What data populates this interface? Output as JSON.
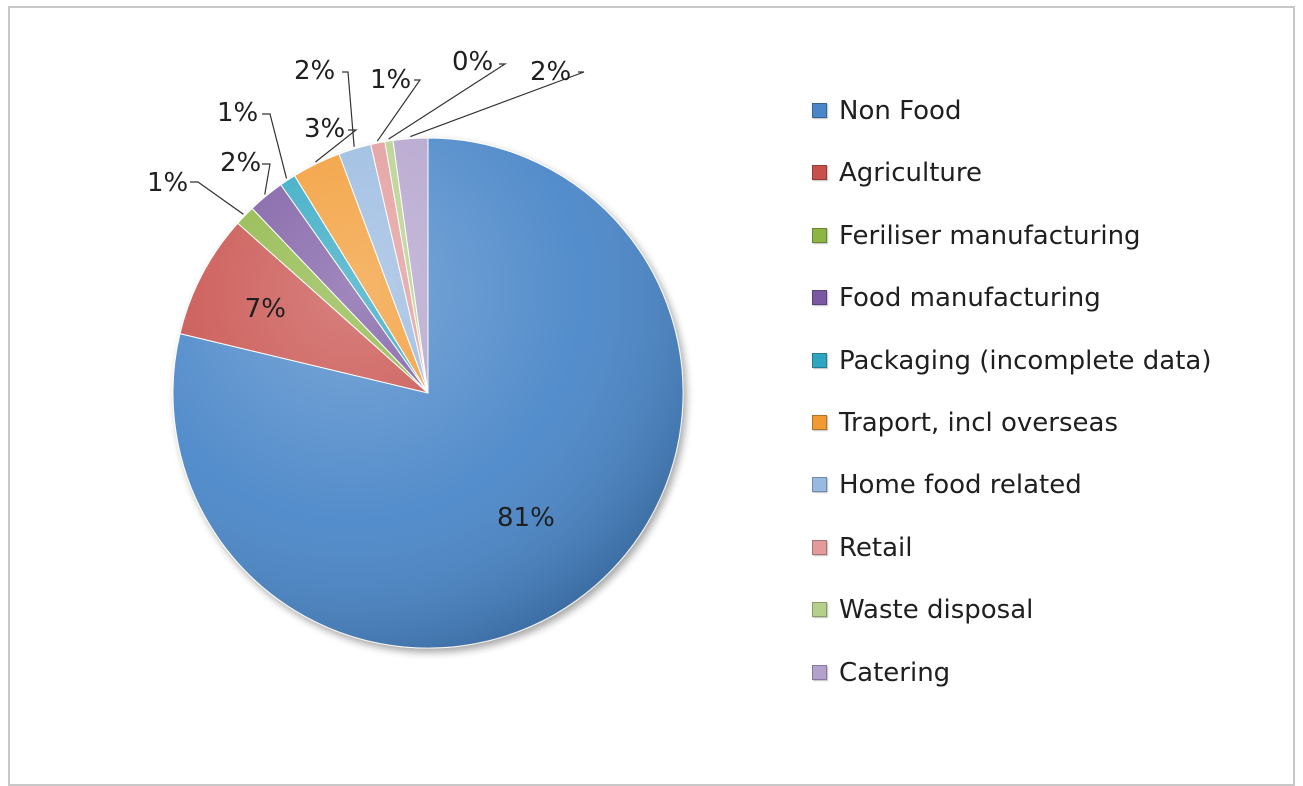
{
  "chart_data": {
    "type": "pie",
    "title": "",
    "start_angle_deg": 0,
    "direction": "clockwise",
    "legend_position": "right",
    "slices": [
      {
        "label": "Non Food",
        "value": 81,
        "value_label": "81%",
        "color": "#4a86c8",
        "label_mode": "inside"
      },
      {
        "label": "Agriculture",
        "value": 7,
        "value_label": "7%",
        "color": "#c8504b",
        "label_mode": "inside"
      },
      {
        "label": "Feriliser manufacturing",
        "value": 1,
        "value_label": "1%",
        "color": "#8cb543",
        "label_mode": "callout"
      },
      {
        "label": "Food manufacturing",
        "value": 2,
        "value_label": "2%",
        "color": "#7a58a2",
        "label_mode": "callout"
      },
      {
        "label": "Packaging (incomplete data)",
        "value": 1,
        "value_label": "1%",
        "color": "#2ea6c2",
        "label_mode": "callout"
      },
      {
        "label": "Traport, incl overseas",
        "value": 3,
        "value_label": "3%",
        "color": "#f29a32",
        "label_mode": "callout"
      },
      {
        "label": "Home food related",
        "value": 2,
        "value_label": "2%",
        "color": "#98b9e0",
        "label_mode": "callout"
      },
      {
        "label": "Retail",
        "value": 1,
        "value_label": "1%",
        "color": "#e29a9a",
        "label_mode": "callout"
      },
      {
        "label": "Waste disposal",
        "value": 0,
        "value_label": "0%",
        "color": "#b6d08c",
        "label_mode": "callout"
      },
      {
        "label": "Catering",
        "value": 2,
        "value_label": "2%",
        "color": "#b3a2cc",
        "label_mode": "callout"
      }
    ]
  }
}
